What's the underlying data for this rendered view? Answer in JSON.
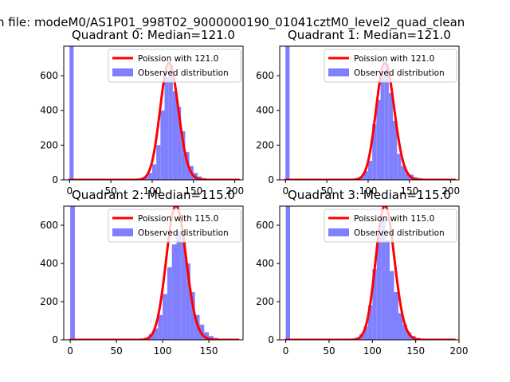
{
  "suptitle": "n file: modeM0/AS1P01_998T02_9000000190_01041cztM0_level2_quad_clean",
  "colors": {
    "histogram": "#8080ff",
    "poisson": "#ff0000",
    "axis": "#000000"
  },
  "chart_data": [
    {
      "type": "bar",
      "title": "Quadrant 0: Median=121.0",
      "xlim": [
        -7,
        210
      ],
      "ylim": [
        0,
        770
      ],
      "xticks": [
        0,
        50,
        100,
        150,
        200
      ],
      "yticks": [
        0,
        200,
        400,
        600
      ],
      "legend_position": "top-right",
      "series": [
        {
          "name": "Poission with 121.0",
          "kind": "line",
          "mean": 121.0,
          "scale": 18600,
          "x_range": [
            0,
            205
          ]
        },
        {
          "name": "Observed distribution",
          "kind": "histogram",
          "bin_width": 5,
          "bins": [
            {
              "x": 0,
              "value": 770
            },
            {
              "x": 85,
              "value": 10
            },
            {
              "x": 90,
              "value": 20
            },
            {
              "x": 95,
              "value": 40
            },
            {
              "x": 100,
              "value": 90
            },
            {
              "x": 105,
              "value": 200
            },
            {
              "x": 110,
              "value": 400
            },
            {
              "x": 115,
              "value": 590
            },
            {
              "x": 120,
              "value": 660
            },
            {
              "x": 125,
              "value": 510
            },
            {
              "x": 130,
              "value": 420
            },
            {
              "x": 135,
              "value": 280
            },
            {
              "x": 140,
              "value": 160
            },
            {
              "x": 145,
              "value": 80
            },
            {
              "x": 150,
              "value": 40
            },
            {
              "x": 155,
              "value": 20
            },
            {
              "x": 160,
              "value": 10
            }
          ]
        }
      ]
    },
    {
      "type": "bar",
      "title": "Quadrant 1: Median=121.0",
      "xlim": [
        -7,
        210
      ],
      "ylim": [
        0,
        770
      ],
      "xticks": [
        0,
        50,
        100,
        150,
        200
      ],
      "yticks": [
        0,
        200,
        400,
        600
      ],
      "legend_position": "top-right",
      "series": [
        {
          "name": "Poission with 121.0",
          "kind": "line",
          "mean": 121.0,
          "scale": 18600,
          "x_range": [
            0,
            205
          ]
        },
        {
          "name": "Observed distribution",
          "kind": "histogram",
          "bin_width": 5,
          "bins": [
            {
              "x": 0,
              "value": 770
            },
            {
              "x": 85,
              "value": 10
            },
            {
              "x": 90,
              "value": 20
            },
            {
              "x": 95,
              "value": 50
            },
            {
              "x": 100,
              "value": 110
            },
            {
              "x": 105,
              "value": 320
            },
            {
              "x": 110,
              "value": 460
            },
            {
              "x": 115,
              "value": 600
            },
            {
              "x": 120,
              "value": 670
            },
            {
              "x": 125,
              "value": 500
            },
            {
              "x": 130,
              "value": 340
            },
            {
              "x": 135,
              "value": 150
            },
            {
              "x": 140,
              "value": 80
            },
            {
              "x": 145,
              "value": 40
            },
            {
              "x": 150,
              "value": 30
            },
            {
              "x": 155,
              "value": 15
            },
            {
              "x": 160,
              "value": 10
            }
          ]
        }
      ]
    },
    {
      "type": "bar",
      "title": "Quadrant 2: Median=115.0",
      "xlim": [
        -7,
        187
      ],
      "ylim": [
        0,
        700
      ],
      "xticks": [
        0,
        50,
        100,
        150
      ],
      "yticks": [
        0,
        200,
        400,
        600
      ],
      "legend_position": "top-right",
      "series": [
        {
          "name": "Poission with 115.0",
          "kind": "line",
          "mean": 115.0,
          "scale": 18900,
          "x_range": [
            0,
            182
          ]
        },
        {
          "name": "Observed distribution",
          "kind": "histogram",
          "bin_width": 5,
          "bins": [
            {
              "x": 0,
              "value": 700
            },
            {
              "x": 80,
              "value": 10
            },
            {
              "x": 85,
              "value": 30
            },
            {
              "x": 90,
              "value": 60
            },
            {
              "x": 95,
              "value": 130
            },
            {
              "x": 100,
              "value": 240
            },
            {
              "x": 105,
              "value": 380
            },
            {
              "x": 110,
              "value": 500
            },
            {
              "x": 115,
              "value": 570
            },
            {
              "x": 120,
              "value": 510
            },
            {
              "x": 125,
              "value": 400
            },
            {
              "x": 130,
              "value": 250
            },
            {
              "x": 135,
              "value": 130
            },
            {
              "x": 140,
              "value": 80
            },
            {
              "x": 145,
              "value": 40
            },
            {
              "x": 150,
              "value": 20
            },
            {
              "x": 155,
              "value": 10
            }
          ]
        }
      ]
    },
    {
      "type": "bar",
      "title": "Quadrant 3: Median=115.0",
      "xlim": [
        -7,
        200
      ],
      "ylim": [
        0,
        700
      ],
      "xticks": [
        0,
        50,
        100,
        150,
        200
      ],
      "yticks": [
        0,
        200,
        400,
        600
      ],
      "legend_position": "top-right",
      "series": [
        {
          "name": "Poission with 115.0",
          "kind": "line",
          "mean": 115.0,
          "scale": 18900,
          "x_range": [
            0,
            195
          ]
        },
        {
          "name": "Observed distribution",
          "kind": "histogram",
          "bin_width": 5,
          "bins": [
            {
              "x": 0,
              "value": 700
            },
            {
              "x": 80,
              "value": 10
            },
            {
              "x": 85,
              "value": 30
            },
            {
              "x": 90,
              "value": 70
            },
            {
              "x": 95,
              "value": 180
            },
            {
              "x": 100,
              "value": 370
            },
            {
              "x": 105,
              "value": 540
            },
            {
              "x": 110,
              "value": 640
            },
            {
              "x": 115,
              "value": 520
            },
            {
              "x": 120,
              "value": 360
            },
            {
              "x": 125,
              "value": 250
            },
            {
              "x": 130,
              "value": 140
            },
            {
              "x": 135,
              "value": 80
            },
            {
              "x": 140,
              "value": 40
            },
            {
              "x": 145,
              "value": 20
            },
            {
              "x": 150,
              "value": 10
            }
          ]
        }
      ]
    }
  ]
}
